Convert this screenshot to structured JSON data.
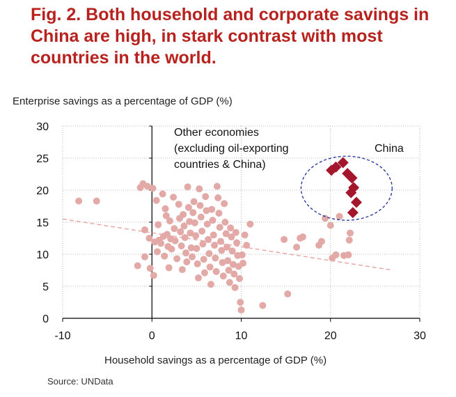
{
  "title": "Fig. 2. Both household and corporate savings in China are high, in stark contrast with most countries in the world.",
  "source": "Source: UNData",
  "colors": {
    "title": "#b8221e",
    "others": "#e3a9a7",
    "china": "#a3162b",
    "circle": "#1f2d9a",
    "trend": "#e8a39f"
  },
  "chart_data": {
    "type": "scatter",
    "xlabel": "Household savings as a percentage of GDP (%)",
    "ylabel": "Enterprise savings as a percentage of GDP (%)",
    "xlim": [
      -10,
      30
    ],
    "ylim": [
      0,
      30
    ],
    "x_ticks": [
      "-10",
      "0",
      "10",
      "20",
      "30"
    ],
    "y_ticks": [
      "0",
      "5",
      "10",
      "15",
      "20",
      "25",
      "30"
    ],
    "grid": true,
    "annotations": {
      "others": [
        "Other economies",
        "(excluding oil-exporting",
        "countries & China)"
      ],
      "china": "China"
    },
    "trendline": {
      "x": [
        -10,
        27
      ],
      "y": [
        15.5,
        7.5
      ]
    },
    "series": [
      {
        "marker": "circle",
        "points": [
          [
            -8.2,
            18.3
          ],
          [
            -6.2,
            18.3
          ],
          [
            -1.6,
            8.2
          ],
          [
            -1.3,
            20.4
          ],
          [
            -1.0,
            21.0
          ],
          [
            -0.8,
            13.8
          ],
          [
            -0.8,
            9.6
          ],
          [
            -0.5,
            20.6
          ],
          [
            -0.3,
            12.5
          ],
          [
            -0.2,
            7.8
          ],
          [
            0.1,
            20.3
          ],
          [
            0.2,
            6.7
          ],
          [
            0.3,
            11.9
          ],
          [
            0.5,
            18.4
          ],
          [
            0.6,
            10.4
          ],
          [
            0.7,
            14.6
          ],
          [
            0.8,
            12.2
          ],
          [
            1.0,
            11.7
          ],
          [
            1.2,
            19.4
          ],
          [
            1.3,
            12.8
          ],
          [
            1.4,
            9.7
          ],
          [
            1.5,
            17.1
          ],
          [
            1.6,
            16.0
          ],
          [
            1.7,
            13.1
          ],
          [
            1.8,
            11.2
          ],
          [
            1.9,
            7.9
          ],
          [
            2.0,
            15.2
          ],
          [
            2.1,
            12.4
          ],
          [
            2.2,
            10.8
          ],
          [
            2.4,
            18.9
          ],
          [
            2.5,
            14.0
          ],
          [
            2.6,
            12.1
          ],
          [
            2.8,
            9.3
          ],
          [
            3.0,
            17.8
          ],
          [
            3.1,
            15.6
          ],
          [
            3.2,
            13.5
          ],
          [
            3.3,
            11.3
          ],
          [
            3.4,
            7.6
          ],
          [
            3.5,
            16.2
          ],
          [
            3.6,
            14.4
          ],
          [
            3.7,
            12.6
          ],
          [
            3.8,
            10.2
          ],
          [
            3.9,
            8.8
          ],
          [
            4.0,
            20.5
          ],
          [
            4.1,
            17.3
          ],
          [
            4.2,
            15.1
          ],
          [
            4.3,
            13.3
          ],
          [
            4.4,
            11.0
          ],
          [
            4.5,
            9.6
          ],
          [
            4.6,
            16.5
          ],
          [
            4.7,
            18.2
          ],
          [
            4.8,
            14.9
          ],
          [
            4.9,
            12.9
          ],
          [
            5.0,
            10.9
          ],
          [
            5.1,
            8.5
          ],
          [
            5.2,
            6.3
          ],
          [
            5.3,
            20.2
          ],
          [
            5.4,
            17.6
          ],
          [
            5.5,
            15.8
          ],
          [
            5.6,
            13.6
          ],
          [
            5.7,
            11.6
          ],
          [
            5.8,
            9.2
          ],
          [
            5.9,
            7.1
          ],
          [
            6.0,
            19.0
          ],
          [
            6.1,
            16.8
          ],
          [
            6.2,
            14.7
          ],
          [
            6.3,
            12.3
          ],
          [
            6.4,
            10.1
          ],
          [
            6.5,
            8.0
          ],
          [
            6.6,
            5.3
          ],
          [
            6.7,
            17.0
          ],
          [
            6.8,
            15.3
          ],
          [
            6.9,
            13.0
          ],
          [
            7.0,
            11.4
          ],
          [
            7.1,
            9.4
          ],
          [
            7.2,
            7.3
          ],
          [
            7.3,
            20.6
          ],
          [
            7.4,
            18.8
          ],
          [
            7.5,
            16.4
          ],
          [
            7.6,
            14.2
          ],
          [
            7.7,
            12.0
          ],
          [
            7.8,
            10.6
          ],
          [
            7.9,
            8.7
          ],
          [
            8.0,
            6.6
          ],
          [
            8.1,
            17.9
          ],
          [
            8.2,
            15.0
          ],
          [
            8.3,
            13.2
          ],
          [
            8.4,
            11.1
          ],
          [
            8.5,
            9.0
          ],
          [
            8.6,
            7.5
          ],
          [
            8.7,
            5.6
          ],
          [
            8.8,
            14.1
          ],
          [
            8.9,
            12.7
          ],
          [
            9.0,
            10.5
          ],
          [
            9.1,
            8.4
          ],
          [
            9.2,
            6.9
          ],
          [
            9.3,
            4.8
          ],
          [
            9.4,
            13.4
          ],
          [
            9.5,
            11.8
          ],
          [
            9.6,
            9.8
          ],
          [
            9.7,
            8.1
          ],
          [
            9.8,
            6.2
          ],
          [
            9.9,
            2.5
          ],
          [
            10.0,
            1.3
          ],
          [
            10.1,
            9.9
          ],
          [
            10.2,
            8.6
          ],
          [
            10.4,
            13.0
          ],
          [
            10.6,
            11.4
          ],
          [
            11.0,
            14.7
          ],
          [
            12.4,
            2.0
          ],
          [
            14.8,
            12.3
          ],
          [
            15.2,
            3.8
          ],
          [
            16.2,
            11.1
          ],
          [
            16.6,
            12.5
          ],
          [
            16.9,
            12.7
          ],
          [
            18.7,
            11.4
          ],
          [
            19.0,
            12.0
          ],
          [
            19.4,
            15.6
          ],
          [
            20.0,
            14.5
          ],
          [
            20.2,
            9.4
          ],
          [
            20.6,
            9.9
          ],
          [
            21.0,
            15.9
          ],
          [
            21.5,
            9.8
          ],
          [
            22.0,
            9.9
          ],
          [
            22.1,
            12.2
          ],
          [
            22.2,
            13.3
          ]
        ]
      },
      {
        "marker": "diamond",
        "points": [
          [
            20.1,
            23.1
          ],
          [
            20.6,
            23.6
          ],
          [
            21.4,
            24.3
          ],
          [
            21.9,
            22.6
          ],
          [
            22.4,
            21.9
          ],
          [
            22.6,
            20.4
          ],
          [
            22.3,
            19.6
          ],
          [
            22.9,
            18.1
          ],
          [
            22.5,
            16.5
          ]
        ]
      }
    ],
    "china_circle": {
      "cx": 21.8,
      "cy": 20.3,
      "rx": 5.1,
      "ry": 5.0
    }
  }
}
